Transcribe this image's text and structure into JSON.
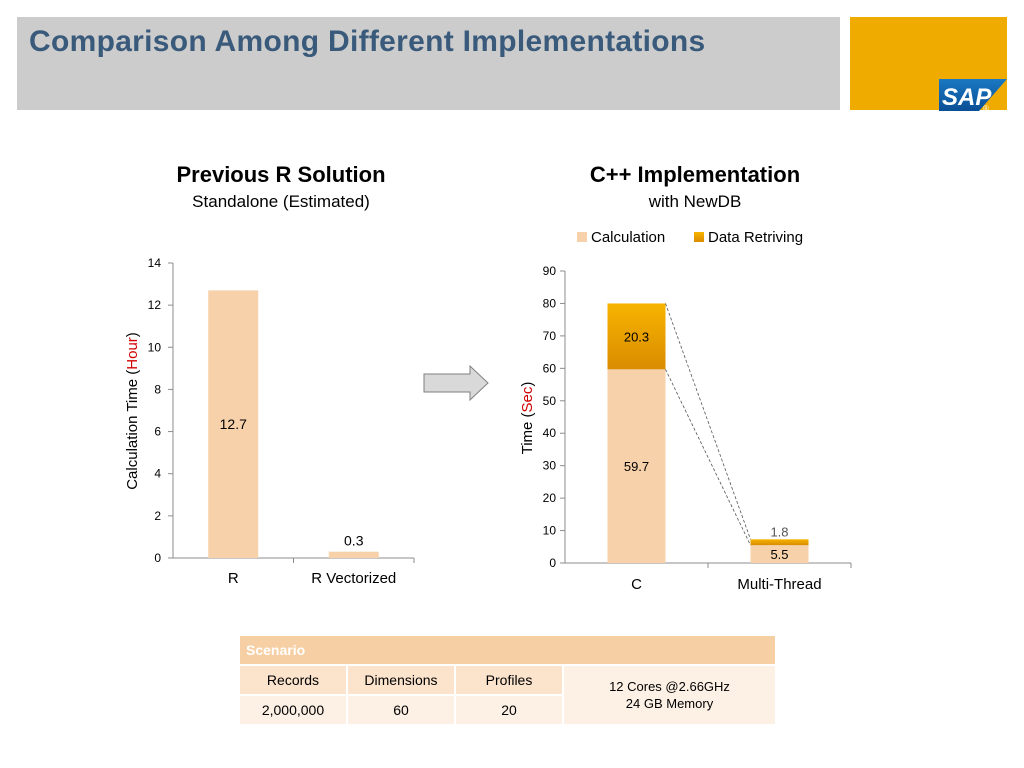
{
  "slide": {
    "title": "Comparison Among Different Implementations"
  },
  "logo": {
    "text": "SAP",
    "mark": "®"
  },
  "colors": {
    "calculation": "#f7d1aa",
    "data_retriving": "#f0a800",
    "title": "#3a5a7c",
    "highlight": "#d00000"
  },
  "left_chart": {
    "title": "Previous R Solution",
    "subtitle": "Standalone (Estimated)"
  },
  "right_chart": {
    "title": "C++ Implementation",
    "subtitle": "with NewDB"
  },
  "chart_data": [
    {
      "type": "bar",
      "title": "Previous R Solution",
      "subtitle": "Standalone (Estimated)",
      "categories": [
        "R",
        "R Vectorized"
      ],
      "values": [
        12.7,
        0.3
      ],
      "data_labels": [
        "12.7",
        "0.3"
      ],
      "ylabel_prefix": "Calculation Time (",
      "ylabel_unit": "Hour",
      "ylabel_suffix": ")",
      "ylim": [
        0,
        14
      ],
      "yticks": [
        0,
        2,
        4,
        6,
        8,
        10,
        12,
        14
      ]
    },
    {
      "type": "bar",
      "stacked": true,
      "title": "C++ Implementation",
      "subtitle": "with NewDB",
      "categories": [
        "C",
        "Multi-Thread"
      ],
      "series": [
        {
          "name": "Calculation",
          "values": [
            59.7,
            5.5
          ],
          "labels": [
            "59.7",
            "5.5"
          ]
        },
        {
          "name": "Data Retriving",
          "values": [
            20.3,
            1.8
          ],
          "labels": [
            "20.3",
            "1.8"
          ]
        }
      ],
      "ylabel_prefix": "Time (",
      "ylabel_unit": "Sec",
      "ylabel_suffix": ")",
      "ylim": [
        0,
        90
      ],
      "yticks": [
        0,
        10,
        20,
        30,
        40,
        50,
        60,
        70,
        80,
        90
      ],
      "legend": "top"
    }
  ],
  "scenario": {
    "header": "Scenario",
    "columns": [
      "Records",
      "Dimensions",
      "Profiles"
    ],
    "values": [
      "2,000,000",
      "60",
      "20"
    ],
    "hardware_line1": "12 Cores @2.66GHz",
    "hardware_line2": "24 GB Memory"
  }
}
